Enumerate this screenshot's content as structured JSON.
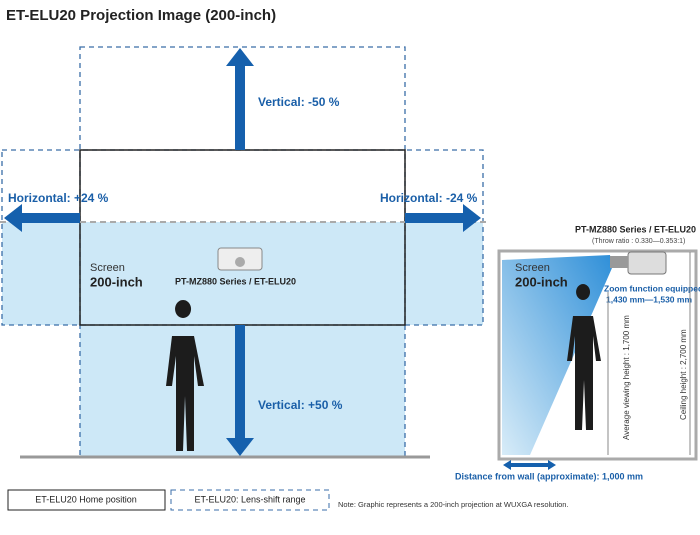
{
  "header": {
    "title": "ET-ELU20 Projection Image (200-inch)"
  },
  "front_view": {
    "vertical_up": "Vertical: -50 %",
    "vertical_down": "Vertical: +50 %",
    "horizontal_left": "Horizontal: +24 %",
    "horizontal_right": "Horizontal: -24 %",
    "screen_label": "Screen",
    "screen_size": "200-inch",
    "projector_label": "PT-MZ880 Series / ET-ELU20"
  },
  "side_view": {
    "projector_label": "PT-MZ880 Series / ET-ELU20",
    "throw_ratio": "(Throw ratio : 0.330—0.353:1)",
    "screen_label": "Screen",
    "screen_size": "200-inch",
    "zoom": "Zoom function equipped",
    "zoom_range": "1,430 mm—1,530 mm",
    "viewing_height": "Average viewing height : 1,700 mm",
    "ceiling_height": "Ceiling height : 2,700 mm",
    "distance": "Distance from wall (approximate): 1,000 mm"
  },
  "legend": {
    "home": "ET-ELU20 Home position",
    "shift": "ET-ELU20: Lens-shift range",
    "note": "Note: Graphic represents a 200-inch projection at WUXGA resolution."
  }
}
